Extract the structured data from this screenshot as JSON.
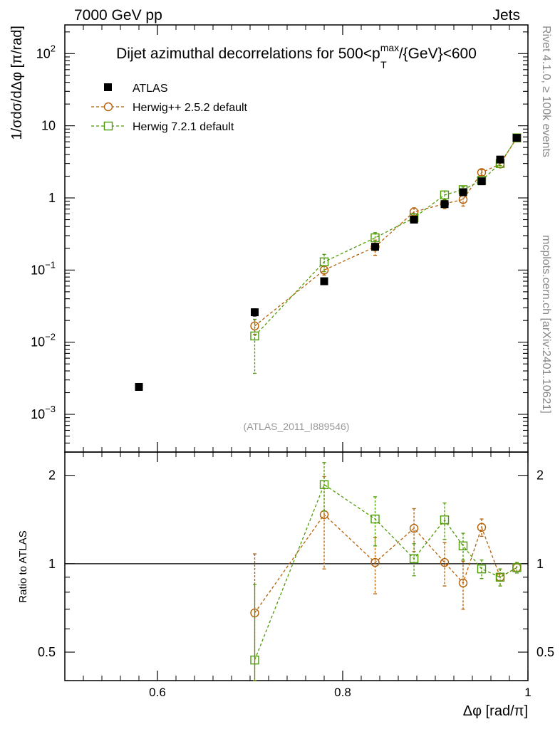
{
  "header": {
    "left": "7000 GeV pp",
    "right": "Jets",
    "side_rivet": "Rivet 4.1.0, ≥ 100k events",
    "side_mcplots": "mcplots.cern.ch [arXiv:2401.10621]",
    "watermark": "(ATLAS_2011_I889546)"
  },
  "chart_data": {
    "type": "scatter",
    "title": "Dijet azimuthal decorrelations for 500<p_T^max/{GeV}<600",
    "title_parts": {
      "pre": "Dijet azimuthal decorrelations for 500<p",
      "sup": "max",
      "sub": "T",
      "post": "/{GeV}<600"
    },
    "xlabel": "Δφ [rad/π]",
    "ylabel": "1/σdσ/dΔφ [π/rad]",
    "ratio_ylabel": "Ratio to ATLAS",
    "xlim": [
      0.5,
      1.0
    ],
    "ylim": [
      0.0003,
      250
    ],
    "ratio_ylim": [
      0.4,
      2.4
    ],
    "yscale": "log",
    "x_ticks": [
      {
        "value": 0.6,
        "label": "0.6"
      },
      {
        "value": 0.8,
        "label": "0.8"
      },
      {
        "value": 1.0,
        "label": "1"
      }
    ],
    "y_ticks": [
      {
        "value": 0.001,
        "base": "10",
        "exp": "−3"
      },
      {
        "value": 0.01,
        "base": "10",
        "exp": "−2"
      },
      {
        "value": 0.1,
        "base": "10",
        "exp": "−1"
      },
      {
        "value": 1,
        "base": "1",
        "exp": ""
      },
      {
        "value": 10,
        "base": "10",
        "exp": ""
      },
      {
        "value": 100,
        "base": "10",
        "exp": "2"
      }
    ],
    "ratio_ticks": [
      {
        "value": 0.5,
        "label": "0.5"
      },
      {
        "value": 1,
        "label": "1"
      },
      {
        "value": 2,
        "label": "2"
      }
    ],
    "series": [
      {
        "name": "ATLAS",
        "marker": "filled-square",
        "color": "#000000",
        "x": [
          0.58,
          0.705,
          0.78,
          0.835,
          0.877,
          0.91,
          0.93,
          0.95,
          0.97,
          0.988
        ],
        "y": [
          0.0024,
          0.026,
          0.07,
          0.21,
          0.5,
          0.82,
          1.2,
          1.7,
          3.4,
          6.8
        ],
        "yerr": [
          0.0,
          0.003,
          0.006,
          0.02,
          0.04,
          0.07,
          0.1,
          0.12,
          0.25,
          0.4
        ]
      },
      {
        "name": "Herwig++ 2.5.2 default",
        "marker": "open-circle",
        "color": "#b45f06",
        "x": [
          0.705,
          0.78,
          0.835,
          0.877,
          0.91,
          0.93,
          0.95,
          0.97,
          0.988
        ],
        "y": [
          0.0168,
          0.1,
          0.21,
          0.64,
          0.83,
          0.95,
          2.25,
          2.95,
          6.8
        ],
        "yerr": [
          0.004,
          0.015,
          0.05,
          0.09,
          0.12,
          0.18,
          0.2,
          0.15,
          0.35
        ],
        "ratio": [
          0.68,
          1.47,
          1.01,
          1.32,
          1.01,
          0.86,
          1.33,
          0.9,
          0.97
        ],
        "ratio_err": [
          0.4,
          0.51,
          0.22,
          0.22,
          0.17,
          0.16,
          0.09,
          0.06,
          0.04
        ]
      },
      {
        "name": "Herwig 7.2.1 default",
        "marker": "open-square",
        "color": "#4e9a06",
        "x": [
          0.705,
          0.78,
          0.835,
          0.877,
          0.91,
          0.93,
          0.95,
          0.97,
          0.988
        ],
        "y": [
          0.0122,
          0.13,
          0.28,
          0.53,
          1.1,
          1.3,
          1.75,
          3.0,
          6.8
        ],
        "yerr": [
          0.0085,
          0.035,
          0.05,
          0.07,
          0.15,
          0.12,
          0.12,
          0.2,
          0.35
        ],
        "ratio": [
          0.47,
          1.86,
          1.42,
          1.04,
          1.41,
          1.15,
          0.96,
          0.9,
          0.97
        ],
        "ratio_err": [
          0.38,
          0.35,
          0.27,
          0.13,
          0.2,
          0.12,
          0.07,
          0.06,
          0.04
        ]
      }
    ]
  }
}
